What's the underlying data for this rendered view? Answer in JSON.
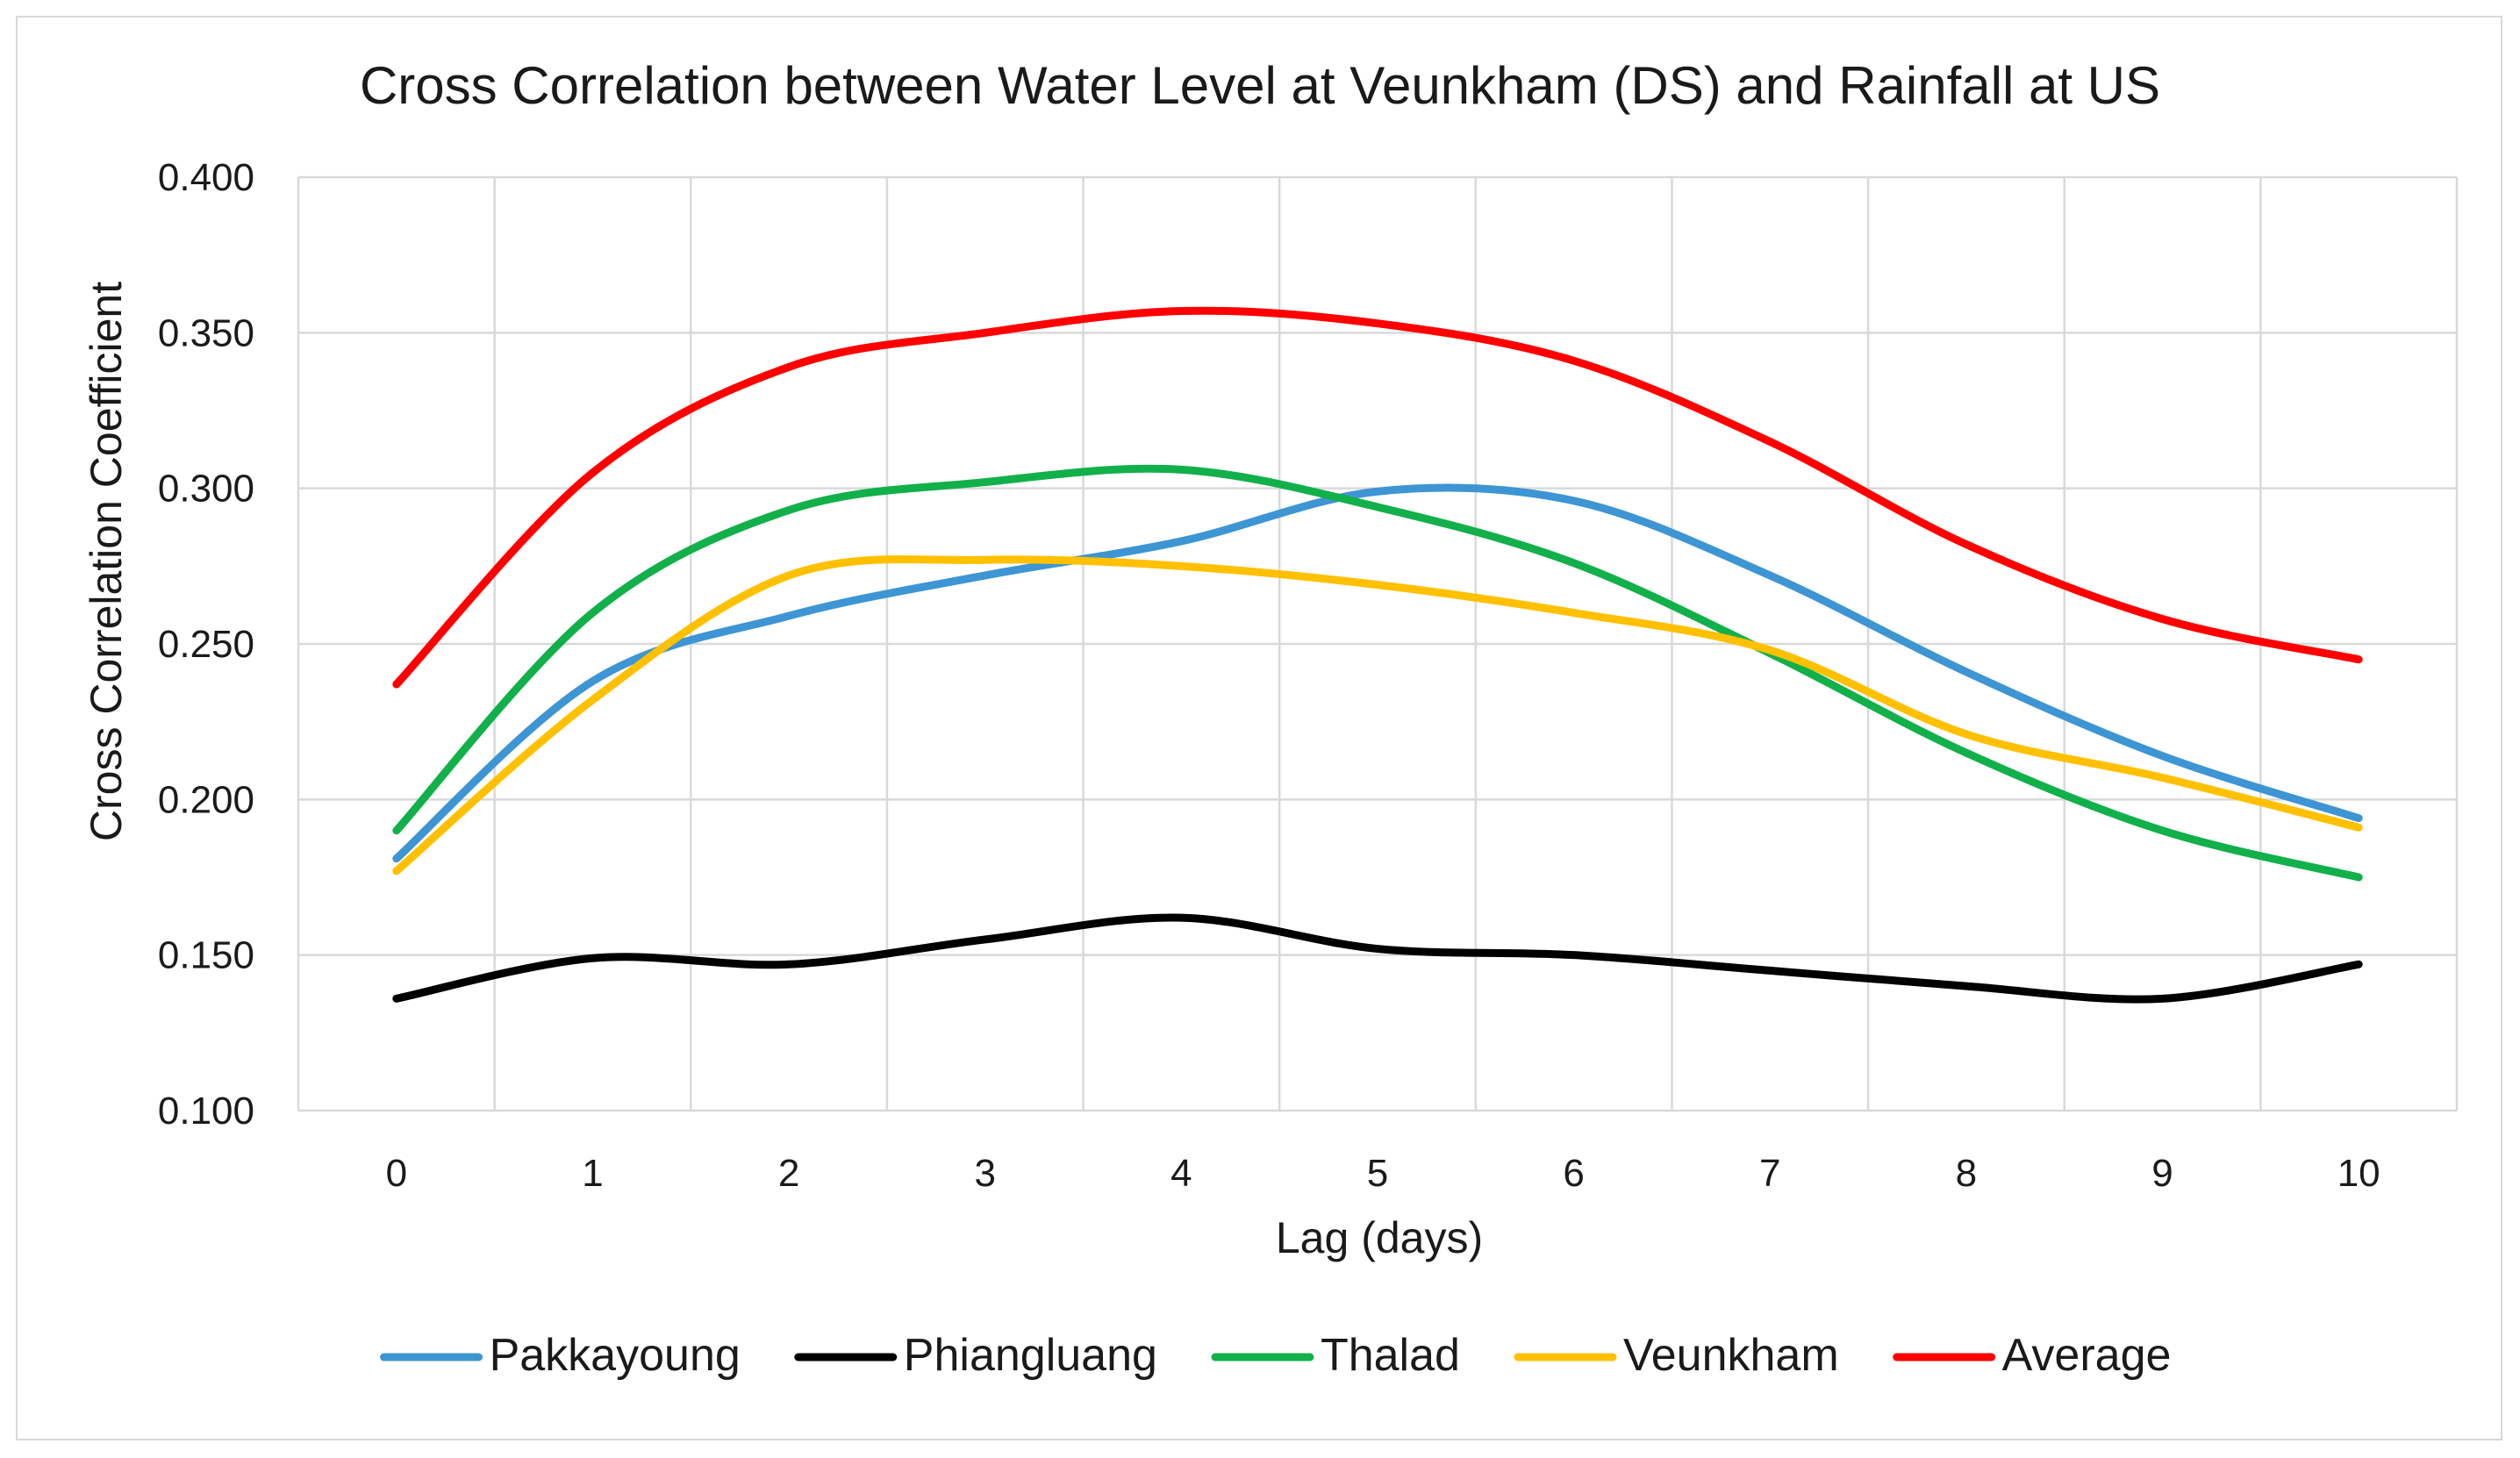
{
  "chart_data": {
    "type": "line",
    "smooth": true,
    "title": "Cross Correlation between Water Level at Veunkham (DS) and Rainfall at US",
    "xlabel": "Lag (days)",
    "ylabel": "Cross Correlation Coefficient",
    "x": [
      0,
      1,
      2,
      3,
      4,
      5,
      6,
      7,
      8,
      9,
      10
    ],
    "x_tick_labels": [
      "0",
      "1",
      "2",
      "3",
      "4",
      "5",
      "6",
      "7",
      "8",
      "9",
      "10"
    ],
    "ylim": [
      0.1,
      0.4
    ],
    "y_ticks": [
      0.1,
      0.15,
      0.2,
      0.25,
      0.3,
      0.35,
      0.4
    ],
    "y_tick_labels": [
      "0.100",
      "0.150",
      "0.200",
      "0.250",
      "0.300",
      "0.350",
      "0.400"
    ],
    "grid": true,
    "legend_position": "bottom",
    "series": [
      {
        "name": "Pakkayoung",
        "color": "#3d95d4",
        "values": [
          0.181,
          0.238,
          0.259,
          0.272,
          0.283,
          0.299,
          0.296,
          0.272,
          0.241,
          0.214,
          0.194
        ]
      },
      {
        "name": "Phiangluang",
        "color": "#000000",
        "values": [
          0.136,
          0.149,
          0.147,
          0.155,
          0.162,
          0.152,
          0.15,
          0.145,
          0.14,
          0.136,
          0.147
        ]
      },
      {
        "name": "Thalad",
        "color": "#12b04a",
        "values": [
          0.19,
          0.26,
          0.293,
          0.302,
          0.306,
          0.294,
          0.276,
          0.247,
          0.215,
          0.19,
          0.175
        ]
      },
      {
        "name": "Veunkham",
        "color": "#ffc000",
        "values": [
          0.177,
          0.232,
          0.272,
          0.277,
          0.275,
          0.269,
          0.26,
          0.248,
          0.221,
          0.207,
          0.191
        ]
      },
      {
        "name": "Average",
        "color": "#ff0000",
        "values": [
          0.237,
          0.305,
          0.339,
          0.35,
          0.357,
          0.353,
          0.341,
          0.315,
          0.282,
          0.258,
          0.245
        ]
      }
    ]
  }
}
